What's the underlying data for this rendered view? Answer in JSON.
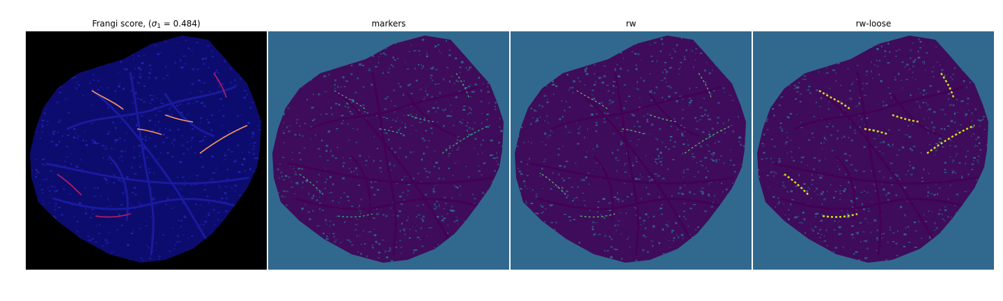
{
  "figure": {
    "panels": [
      {
        "title_prefix": "Frangi score, (",
        "title_symbol": "σ",
        "title_subscript": "1",
        "title_suffix": " = 0.484)",
        "background": "#000000",
        "blob": "#0c0c6e",
        "texture": "#2424b8",
        "vessel": "#1a1aa0",
        "highlight": "#ff9a5a",
        "highlight_alt": "#c01c6a"
      },
      {
        "title": "markers",
        "background": "#31688e",
        "blob": "#3e0c5a",
        "texture": "#2e6b8e",
        "vessel": "#440154",
        "highlight": "#35b779"
      },
      {
        "title": "rw",
        "background": "#31688e",
        "blob": "#3e0c5a",
        "texture": "#2e6b8e",
        "vessel": "#440154",
        "highlight": "#5ec962"
      },
      {
        "title": "rw-loose",
        "background": "#31688e",
        "blob": "#3e0c5a",
        "texture": "#2e6b8e",
        "vessel": "#440154",
        "highlight": "#d8e219"
      }
    ]
  }
}
